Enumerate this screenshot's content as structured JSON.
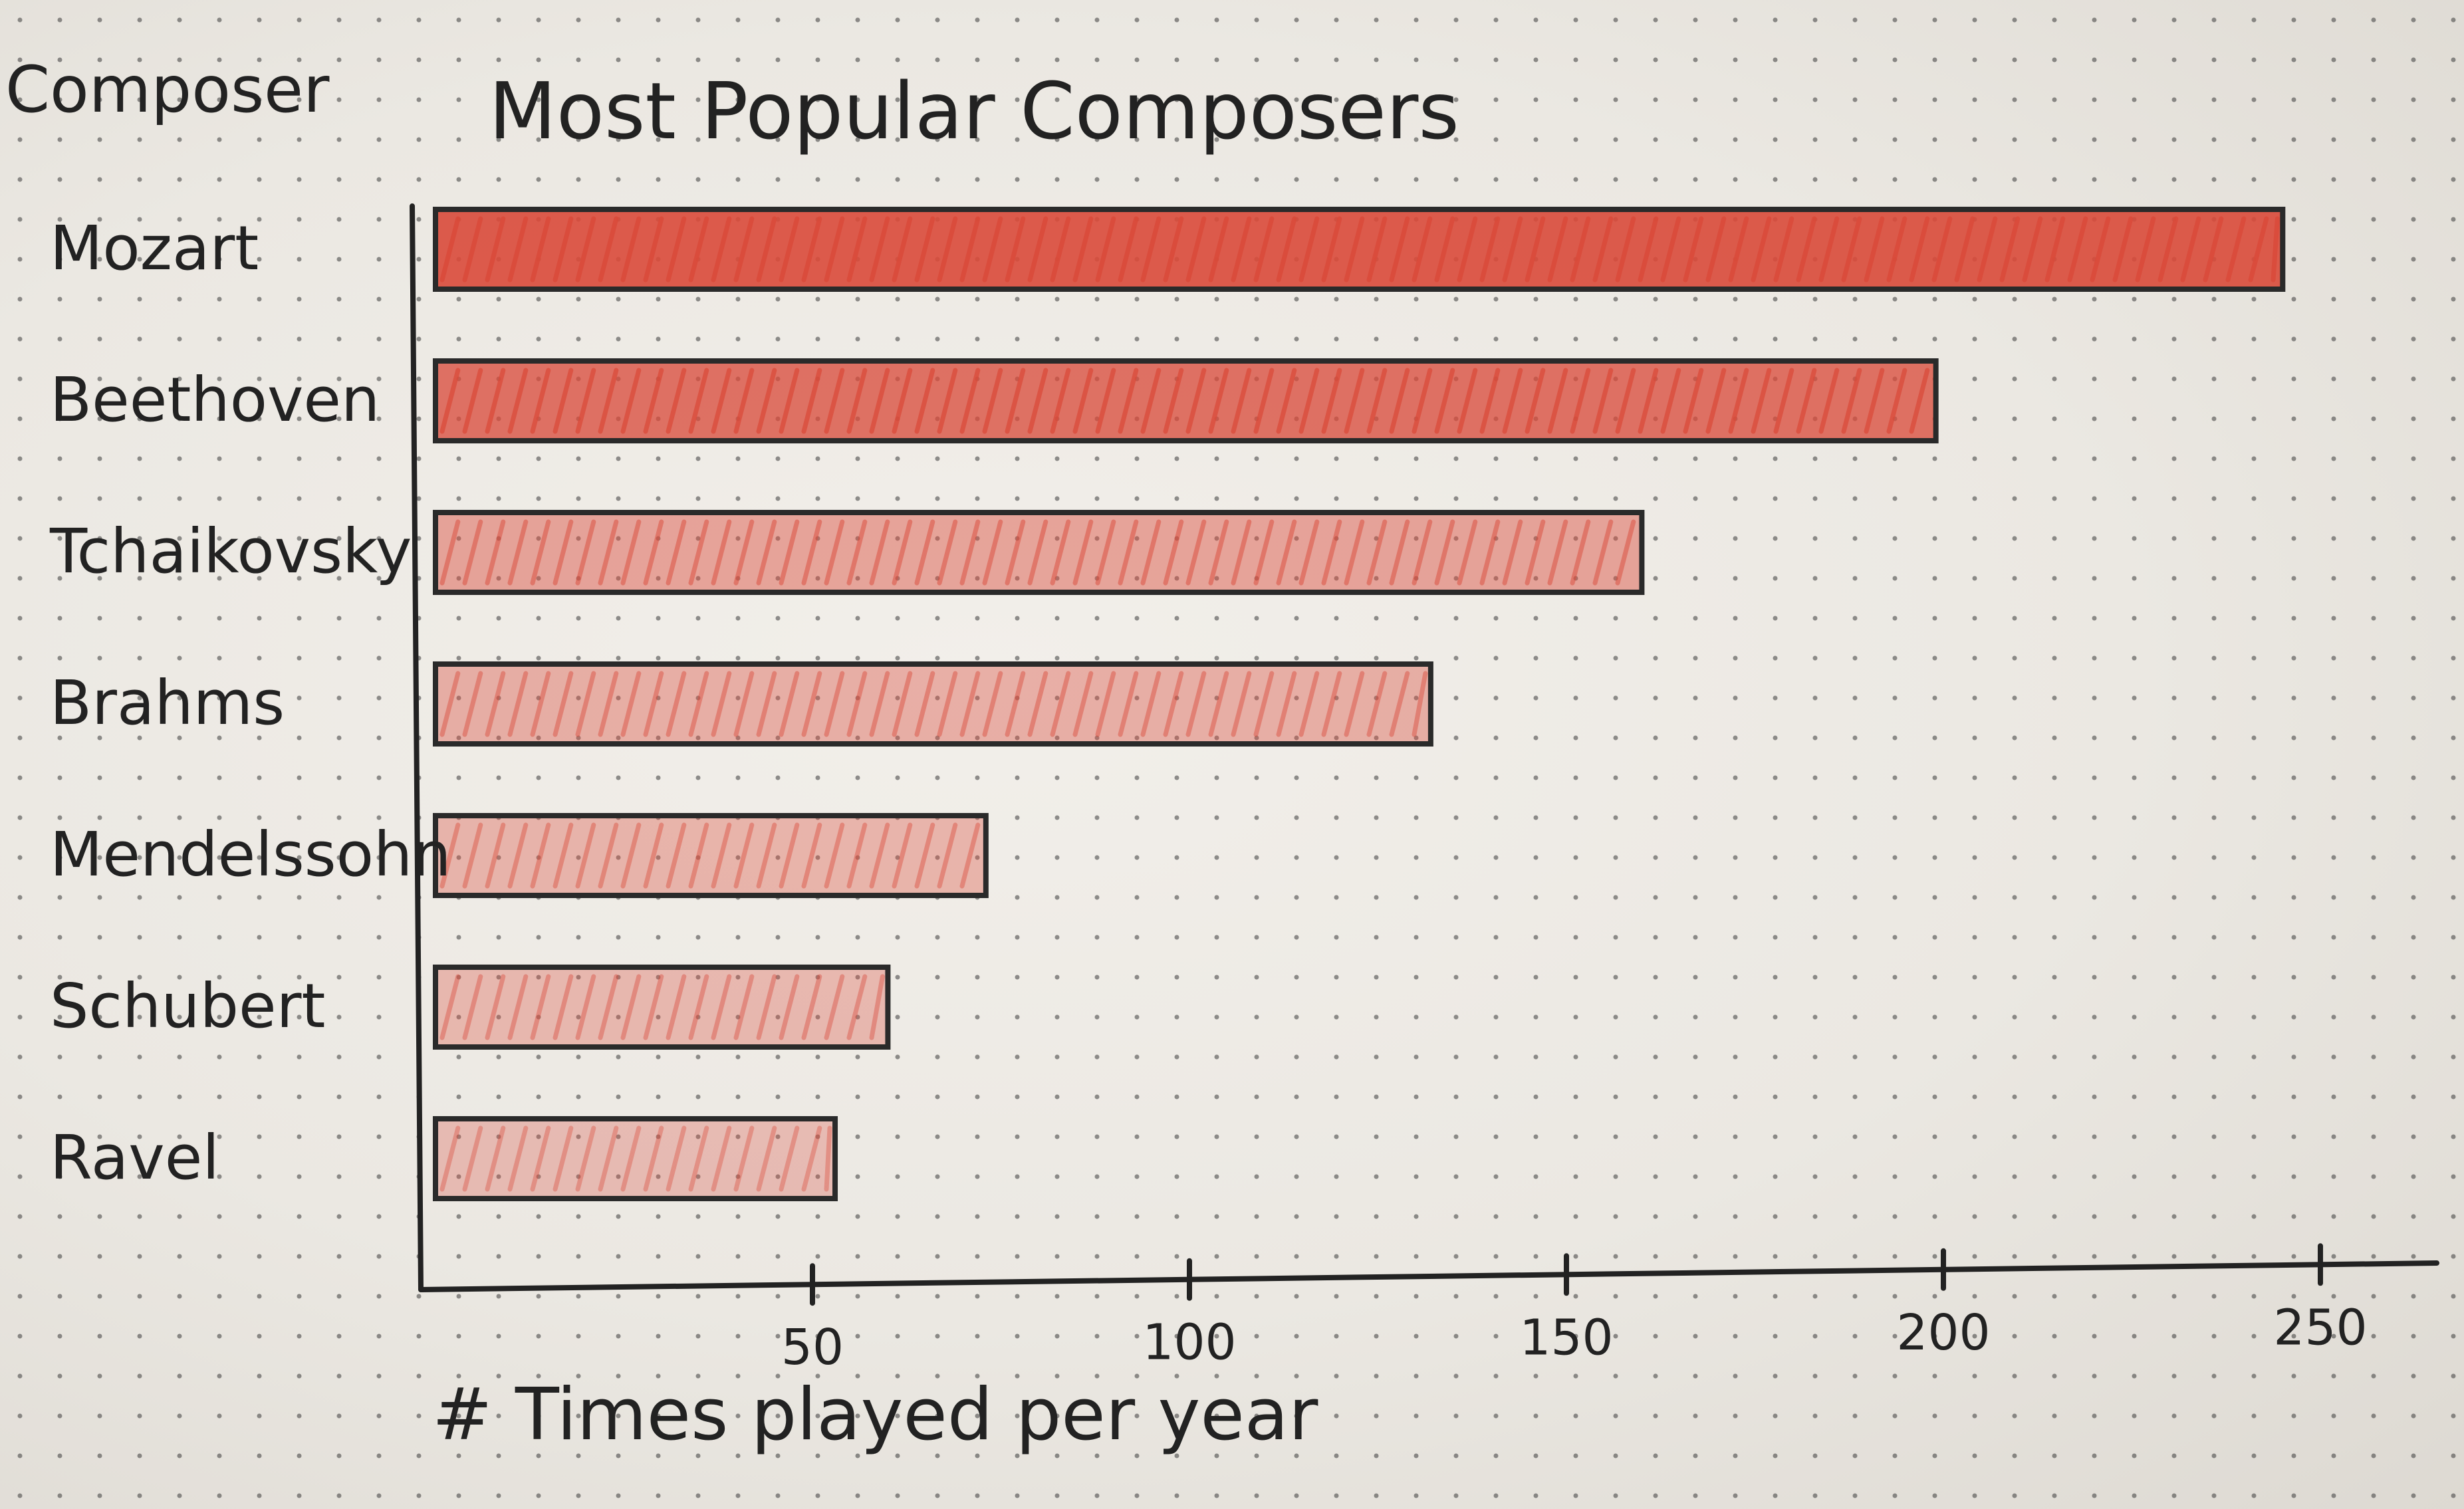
{
  "chart_data": {
    "type": "bar",
    "orientation": "horizontal",
    "title": "Most Popular Composers",
    "ylabel": "Composer",
    "xlabel": "# Times played per year",
    "categories": [
      "Mozart",
      "Beethoven",
      "Tchaikovsky",
      "Brahms",
      "Mendelssohn",
      "Schubert",
      "Ravel"
    ],
    "values": [
      245,
      199,
      160,
      132,
      73,
      60,
      53
    ],
    "xlim": [
      0,
      250
    ],
    "x_ticks": [
      "50",
      "100",
      "150",
      "200",
      "250"
    ],
    "x_tick_values": [
      50,
      100,
      150,
      200,
      250
    ],
    "grid": false,
    "legend": "none",
    "colors": {
      "bar_outline": "#2a2a2a",
      "bar_fill": "#d94a3a",
      "paper": "#efece6",
      "dots": "#3a3a3a",
      "ink": "#222222"
    },
    "bar_fill_intensity": [
      1.0,
      0.82,
      0.42,
      0.34,
      0.3,
      0.26,
      0.22
    ]
  }
}
